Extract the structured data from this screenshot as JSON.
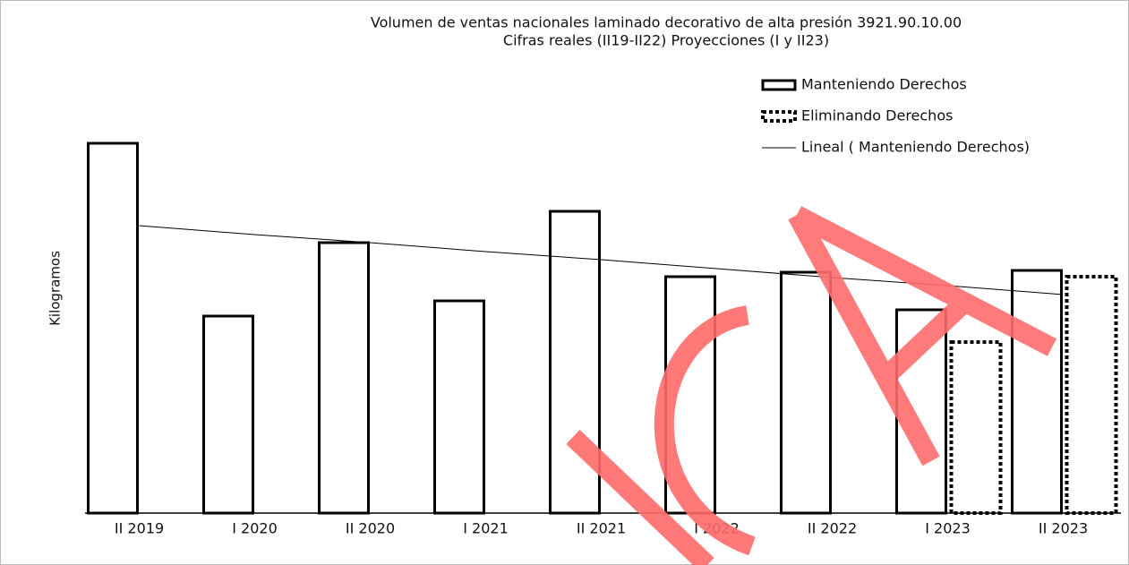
{
  "chart_data": {
    "type": "bar",
    "title": "Volumen de ventas nacionales laminado decorativo de alta presión 3921.90.10.00",
    "subtitle": "Cifras reales (II19-II22) Proyecciones (I y II23)",
    "y_label": "Kilogramos",
    "categories": [
      "II 2019",
      "I 2020",
      "II 2020",
      "I 2021",
      "II 2021",
      "I 2022",
      "II 2022",
      "I 2023",
      "II 2023"
    ],
    "series": [
      {
        "name": "Manteniendo Derechos",
        "color": "#000000",
        "style": "solid",
        "values": [
          413,
          220,
          302,
          237,
          337,
          264,
          269,
          227,
          271
        ]
      },
      {
        "name": "Eliminando Derechos",
        "color": "#000000",
        "style": "dotted",
        "values": [
          null,
          null,
          null,
          null,
          null,
          null,
          null,
          191,
          264
        ]
      },
      {
        "name": "Lineal ( Manteniendo Derechos)",
        "color": "#000000",
        "style": "line",
        "values": [
          321,
          311,
          302,
          292,
          283,
          273,
          263,
          254,
          244
        ]
      }
    ]
  }
}
